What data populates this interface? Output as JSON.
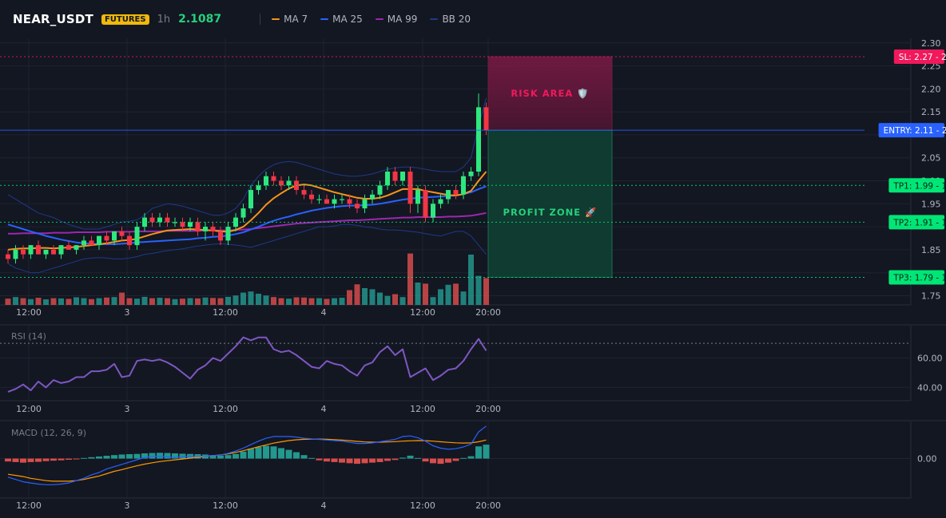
{
  "header": {
    "symbol": "NEAR_USDT",
    "badge": "FUTURES",
    "timeframe": "1h",
    "price": "2.1087",
    "legend": [
      {
        "label": "MA 7",
        "color": "#f7931a"
      },
      {
        "label": "MA 25",
        "color": "#2962ff"
      },
      {
        "label": "MA 99",
        "color": "#9c27b0"
      },
      {
        "label": "BB 20",
        "color": "#1e3a8a"
      }
    ]
  },
  "colors": {
    "up": "#26a69a",
    "upBright": "#2ee87f",
    "down": "#ef5350",
    "downBright": "#f23645",
    "bg": "#131722",
    "grid": "#1f2330",
    "text": "#b2b5be",
    "rsi": "#7e57c2",
    "macd": "#2962ff",
    "signal": "#ff9800"
  },
  "chart_data": [
    {
      "type": "candlestick",
      "x_tick_labels": [
        "12:00",
        "3",
        "12:00",
        "4",
        "12:00",
        "20:00"
      ],
      "ylim": [
        1.73,
        2.31
      ],
      "y_ticks": [
        1.75,
        1.8,
        1.85,
        1.9,
        1.95,
        2.0,
        2.05,
        2.1,
        2.15,
        2.2,
        2.25,
        2.3
      ],
      "y_tick_labels": [
        "1.75",
        "",
        "1.85",
        "",
        "1.95",
        "2.00",
        "2.05",
        "",
        "2.15",
        "2.20",
        "2.25",
        "2.30"
      ],
      "candles": [
        [
          1.84,
          1.85,
          1.82,
          1.83
        ],
        [
          1.83,
          1.86,
          1.82,
          1.85
        ],
        [
          1.85,
          1.86,
          1.83,
          1.84
        ],
        [
          1.84,
          1.86,
          1.83,
          1.86
        ],
        [
          1.86,
          1.87,
          1.84,
          1.84
        ],
        [
          1.84,
          1.85,
          1.83,
          1.85
        ],
        [
          1.85,
          1.86,
          1.84,
          1.84
        ],
        [
          1.84,
          1.86,
          1.83,
          1.86
        ],
        [
          1.86,
          1.87,
          1.85,
          1.85
        ],
        [
          1.85,
          1.86,
          1.84,
          1.86
        ],
        [
          1.86,
          1.88,
          1.85,
          1.87
        ],
        [
          1.87,
          1.88,
          1.86,
          1.86
        ],
        [
          1.86,
          1.88,
          1.85,
          1.88
        ],
        [
          1.88,
          1.89,
          1.86,
          1.87
        ],
        [
          1.87,
          1.89,
          1.86,
          1.89
        ],
        [
          1.89,
          1.9,
          1.87,
          1.88
        ],
        [
          1.88,
          1.89,
          1.85,
          1.86
        ],
        [
          1.86,
          1.91,
          1.85,
          1.9
        ],
        [
          1.9,
          1.93,
          1.89,
          1.92
        ],
        [
          1.92,
          1.93,
          1.9,
          1.91
        ],
        [
          1.91,
          1.93,
          1.9,
          1.92
        ],
        [
          1.92,
          1.93,
          1.9,
          1.91
        ],
        [
          1.91,
          1.92,
          1.9,
          1.91
        ],
        [
          1.91,
          1.92,
          1.89,
          1.9
        ],
        [
          1.9,
          1.92,
          1.89,
          1.91
        ],
        [
          1.91,
          1.92,
          1.88,
          1.89
        ],
        [
          1.89,
          1.91,
          1.87,
          1.9
        ],
        [
          1.9,
          1.91,
          1.88,
          1.89
        ],
        [
          1.89,
          1.9,
          1.86,
          1.87
        ],
        [
          1.87,
          1.91,
          1.86,
          1.9
        ],
        [
          1.9,
          1.93,
          1.89,
          1.92
        ],
        [
          1.92,
          1.95,
          1.91,
          1.94
        ],
        [
          1.94,
          1.99,
          1.93,
          1.98
        ],
        [
          1.98,
          2.0,
          1.97,
          1.99
        ],
        [
          1.99,
          2.02,
          1.98,
          2.01
        ],
        [
          2.01,
          2.02,
          1.99,
          2.0
        ],
        [
          2.0,
          2.01,
          1.98,
          1.99
        ],
        [
          1.99,
          2.01,
          1.98,
          2.0
        ],
        [
          2.0,
          2.01,
          1.97,
          1.98
        ],
        [
          1.98,
          1.99,
          1.96,
          1.97
        ],
        [
          1.97,
          1.98,
          1.95,
          1.96
        ],
        [
          1.96,
          1.97,
          1.95,
          1.96
        ],
        [
          1.96,
          1.97,
          1.95,
          1.95
        ],
        [
          1.95,
          1.97,
          1.94,
          1.96
        ],
        [
          1.96,
          1.97,
          1.95,
          1.96
        ],
        [
          1.96,
          1.97,
          1.94,
          1.95
        ],
        [
          1.95,
          1.96,
          1.93,
          1.94
        ],
        [
          1.94,
          1.97,
          1.93,
          1.96
        ],
        [
          1.96,
          1.98,
          1.95,
          1.97
        ],
        [
          1.97,
          2.0,
          1.96,
          1.99
        ],
        [
          1.99,
          2.03,
          1.98,
          2.02
        ],
        [
          2.02,
          2.03,
          1.99,
          2.0
        ],
        [
          2.0,
          2.02,
          1.99,
          2.02
        ],
        [
          2.02,
          2.03,
          1.93,
          1.95
        ],
        [
          1.95,
          1.99,
          1.93,
          1.98
        ],
        [
          1.98,
          1.99,
          1.91,
          1.92
        ],
        [
          1.92,
          1.96,
          1.91,
          1.95
        ],
        [
          1.95,
          1.97,
          1.94,
          1.96
        ],
        [
          1.96,
          1.98,
          1.95,
          1.98
        ],
        [
          1.98,
          1.99,
          1.96,
          1.97
        ],
        [
          1.97,
          2.02,
          1.96,
          2.01
        ],
        [
          2.01,
          2.03,
          2.0,
          2.02
        ],
        [
          2.02,
          2.19,
          2.01,
          2.16
        ],
        [
          2.16,
          2.17,
          2.1,
          2.11
        ]
      ],
      "volumes": [
        0.28,
        0.35,
        0.3,
        0.26,
        0.32,
        0.25,
        0.3,
        0.29,
        0.27,
        0.34,
        0.3,
        0.26,
        0.3,
        0.33,
        0.35,
        0.55,
        0.3,
        0.28,
        0.36,
        0.3,
        0.32,
        0.3,
        0.26,
        0.28,
        0.3,
        0.29,
        0.33,
        0.31,
        0.3,
        0.36,
        0.42,
        0.55,
        0.6,
        0.5,
        0.42,
        0.35,
        0.3,
        0.28,
        0.34,
        0.33,
        0.3,
        0.3,
        0.27,
        0.3,
        0.32,
        0.66,
        0.92,
        0.75,
        0.7,
        0.55,
        0.4,
        0.48,
        0.35,
        2.3,
        1.0,
        0.95,
        0.35,
        0.7,
        0.9,
        0.95,
        0.6,
        2.25,
        1.3,
        1.2
      ],
      "ma7": [
        1.85,
        1.852,
        1.853,
        1.853,
        1.854,
        1.854,
        1.853,
        1.854,
        1.855,
        1.856,
        1.858,
        1.86,
        1.862,
        1.864,
        1.867,
        1.87,
        1.871,
        1.874,
        1.879,
        1.884,
        1.888,
        1.892,
        1.893,
        1.894,
        1.895,
        1.894,
        1.893,
        1.892,
        1.89,
        1.889,
        1.893,
        1.9,
        1.914,
        1.93,
        1.948,
        1.962,
        1.973,
        1.983,
        1.99,
        1.992,
        1.99,
        1.985,
        1.98,
        1.975,
        1.971,
        1.967,
        1.963,
        1.961,
        1.961,
        1.963,
        1.968,
        1.975,
        1.982,
        1.982,
        1.982,
        1.978,
        1.975,
        1.972,
        1.969,
        1.968,
        1.971,
        1.978,
        2.0,
        2.02
      ],
      "ma25": [
        1.905,
        1.9,
        1.895,
        1.89,
        1.885,
        1.88,
        1.876,
        1.872,
        1.869,
        1.866,
        1.864,
        1.863,
        1.862,
        1.862,
        1.862,
        1.863,
        1.864,
        1.866,
        1.867,
        1.868,
        1.869,
        1.87,
        1.871,
        1.872,
        1.873,
        1.875,
        1.876,
        1.878,
        1.879,
        1.881,
        1.884,
        1.888,
        1.894,
        1.9,
        1.907,
        1.913,
        1.918,
        1.922,
        1.927,
        1.931,
        1.935,
        1.938,
        1.941,
        1.943,
        1.945,
        1.946,
        1.946,
        1.947,
        1.948,
        1.95,
        1.953,
        1.956,
        1.959,
        1.961,
        1.963,
        1.964,
        1.965,
        1.966,
        1.967,
        1.968,
        1.971,
        1.975,
        1.982,
        1.988
      ],
      "ma99": [
        1.885,
        1.885,
        1.886,
        1.886,
        1.886,
        1.886,
        1.887,
        1.887,
        1.887,
        1.888,
        1.888,
        1.888,
        1.888,
        1.889,
        1.889,
        1.889,
        1.889,
        1.89,
        1.89,
        1.89,
        1.89,
        1.891,
        1.891,
        1.891,
        1.891,
        1.891,
        1.892,
        1.892,
        1.892,
        1.892,
        1.893,
        1.894,
        1.895,
        1.897,
        1.899,
        1.901,
        1.903,
        1.905,
        1.907,
        1.908,
        1.909,
        1.91,
        1.911,
        1.912,
        1.913,
        1.914,
        1.914,
        1.915,
        1.916,
        1.917,
        1.918,
        1.919,
        1.92,
        1.92,
        1.921,
        1.921,
        1.921,
        1.921,
        1.922,
        1.922,
        1.923,
        1.924,
        1.927,
        1.93
      ],
      "bb_upper": [
        1.97,
        1.96,
        1.95,
        1.94,
        1.93,
        1.925,
        1.92,
        1.912,
        1.905,
        1.9,
        1.895,
        1.895,
        1.895,
        1.9,
        1.905,
        1.91,
        1.912,
        1.915,
        1.925,
        1.94,
        1.945,
        1.95,
        1.948,
        1.945,
        1.94,
        1.935,
        1.93,
        1.925,
        1.925,
        1.93,
        1.94,
        1.96,
        1.99,
        2.01,
        2.025,
        2.035,
        2.04,
        2.042,
        2.04,
        2.035,
        2.03,
        2.025,
        2.02,
        2.015,
        2.012,
        2.01,
        2.01,
        2.012,
        2.015,
        2.02,
        2.025,
        2.028,
        2.03,
        2.03,
        2.028,
        2.025,
        2.022,
        2.02,
        2.02,
        2.02,
        2.03,
        2.05,
        2.12,
        2.18
      ],
      "bb_lower": [
        1.82,
        1.81,
        1.805,
        1.8,
        1.8,
        1.805,
        1.81,
        1.815,
        1.82,
        1.825,
        1.83,
        1.832,
        1.833,
        1.832,
        1.83,
        1.83,
        1.832,
        1.835,
        1.84,
        1.842,
        1.845,
        1.848,
        1.85,
        1.852,
        1.855,
        1.858,
        1.86,
        1.862,
        1.863,
        1.862,
        1.86,
        1.858,
        1.855,
        1.86,
        1.865,
        1.87,
        1.875,
        1.88,
        1.885,
        1.89,
        1.895,
        1.9,
        1.9,
        1.902,
        1.905,
        1.905,
        1.903,
        1.9,
        1.898,
        1.895,
        1.893,
        1.893,
        1.892,
        1.89,
        1.888,
        1.885,
        1.882,
        1.88,
        1.885,
        1.89,
        1.89,
        1.88,
        1.86,
        1.84
      ],
      "annotations": {
        "sl": {
          "label": "SL: 2.27",
          "value": 2.27,
          "price_label": "2.27",
          "color": "#f0195c"
        },
        "entry": {
          "label": "ENTRY: 2.11",
          "value": 2.11,
          "price_label": "2.11",
          "color": "#2962ff"
        },
        "targets": [
          {
            "label": "TP1: 1.99",
            "value": 1.99,
            "price_label": "1.99"
          },
          {
            "label": "TP2: 1.91",
            "value": 1.91,
            "price_label": "1.91"
          },
          {
            "label": "TP3: 1.79",
            "value": 1.79,
            "price_label": "1.79"
          }
        ],
        "target_color": "#00e676",
        "risk_label": "RISK AREA 🛡️",
        "profit_label": "PROFIT ZONE 🚀"
      }
    },
    {
      "type": "line",
      "name": "RSI (14)",
      "title": "RSI (14)",
      "ylim": [
        31,
        82
      ],
      "y_ticks": [
        40,
        60
      ],
      "y_tick_labels": [
        "40.00",
        "60.00"
      ],
      "overbought": 70,
      "oversold": 30,
      "values": [
        37,
        39,
        42,
        38,
        44,
        40,
        45,
        43,
        44,
        47,
        47,
        51,
        51,
        52,
        56,
        47,
        48,
        58,
        59,
        58,
        59,
        57,
        54,
        50,
        46,
        52,
        55,
        60,
        58,
        63,
        68,
        74,
        72,
        74,
        74,
        66,
        64,
        65,
        62,
        58,
        54,
        53,
        58,
        56,
        55,
        51,
        48,
        55,
        57,
        64,
        68,
        62,
        66,
        47,
        50,
        53,
        45,
        48,
        52,
        53,
        58,
        66,
        73,
        65
      ]
    },
    {
      "type": "bar+line",
      "name": "MACD (12, 26, 9)",
      "title": "MACD (12, 26, 9)",
      "ylim": [
        -0.034,
        0.032
      ],
      "y_ticks": [
        0
      ],
      "y_tick_labels": [
        "0.00"
      ],
      "hist": [
        -0.0025,
        -0.003,
        -0.0035,
        -0.003,
        -0.0028,
        -0.0022,
        -0.0018,
        -0.0015,
        -0.001,
        -0.0006,
        0.0005,
        0.0012,
        0.0018,
        0.0024,
        0.003,
        0.0035,
        0.0038,
        0.004,
        0.0045,
        0.0048,
        0.005,
        0.0048,
        0.0045,
        0.0042,
        0.004,
        0.0038,
        0.0035,
        0.003,
        0.0025,
        0.003,
        0.004,
        0.006,
        0.0085,
        0.01,
        0.011,
        0.0105,
        0.009,
        0.0075,
        0.0055,
        0.003,
        0.0005,
        -0.0015,
        -0.0025,
        -0.003,
        -0.0035,
        -0.004,
        -0.0045,
        -0.004,
        -0.0035,
        -0.003,
        -0.002,
        -0.0012,
        0.0008,
        0.0025,
        0.0005,
        -0.0025,
        -0.004,
        -0.0045,
        -0.0035,
        -0.002,
        0.0005,
        0.002,
        0.0105,
        0.012
      ],
      "macd": [
        -0.016,
        -0.018,
        -0.02,
        -0.021,
        -0.022,
        -0.0225,
        -0.0225,
        -0.022,
        -0.021,
        -0.019,
        -0.017,
        -0.014,
        -0.012,
        -0.009,
        -0.007,
        -0.005,
        -0.003,
        -0.001,
        0.001,
        0.002,
        0.002,
        0.0015,
        0.001,
        0.0015,
        0.002,
        0.002,
        0.002,
        0.0025,
        0.003,
        0.0045,
        0.0065,
        0.009,
        0.012,
        0.015,
        0.0175,
        0.019,
        0.019,
        0.019,
        0.0185,
        0.0175,
        0.017,
        0.0165,
        0.016,
        0.0155,
        0.015,
        0.014,
        0.013,
        0.013,
        0.0135,
        0.0145,
        0.0155,
        0.0165,
        0.019,
        0.0195,
        0.018,
        0.015,
        0.011,
        0.009,
        0.008,
        0.0085,
        0.01,
        0.0125,
        0.023,
        0.028
      ],
      "signal": [
        -0.0135,
        -0.0145,
        -0.0155,
        -0.017,
        -0.018,
        -0.019,
        -0.0195,
        -0.0195,
        -0.0195,
        -0.019,
        -0.018,
        -0.0165,
        -0.015,
        -0.013,
        -0.011,
        -0.0095,
        -0.0078,
        -0.0062,
        -0.0048,
        -0.0036,
        -0.0026,
        -0.0018,
        -0.0011,
        -0.0004,
        0.0004,
        0.0011,
        0.0018,
        0.0025,
        0.0031,
        0.0041,
        0.0053,
        0.0068,
        0.0085,
        0.0102,
        0.0118,
        0.0133,
        0.0145,
        0.0155,
        0.0162,
        0.0166,
        0.0168,
        0.0168,
        0.0166,
        0.0163,
        0.0159,
        0.0154,
        0.0148,
        0.0143,
        0.0141,
        0.0141,
        0.0143,
        0.0146,
        0.015,
        0.0153,
        0.0155,
        0.0154,
        0.015,
        0.0145,
        0.014,
        0.0136,
        0.0134,
        0.0135,
        0.0145,
        0.016
      ]
    }
  ]
}
